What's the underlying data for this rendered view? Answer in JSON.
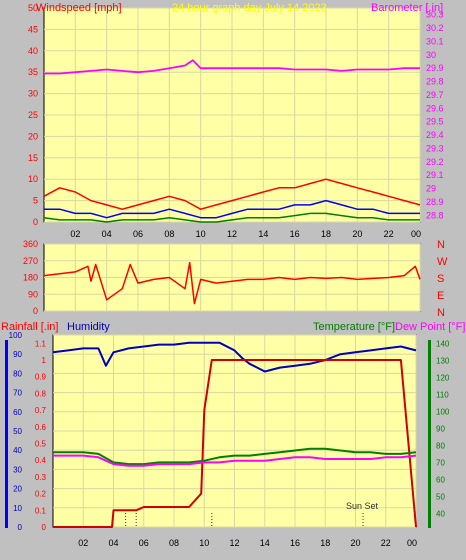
{
  "colors": {
    "background": "#c0c0c0",
    "plot_bg": "#ffffa6",
    "grid": "#d8d8a0",
    "red": "#ff0000",
    "magenta": "#ff00ff",
    "blue": "#0000ff",
    "navy": "#0000c0",
    "green": "#008000",
    "darkred": "#d00000"
  },
  "header": {
    "windspeed_label": "Windspeed [mph]",
    "title": "24 hour graph day   July 14 2023",
    "barometer_label": "Barometer [.in]"
  },
  "x_ticks": [
    "02",
    "04",
    "06",
    "08",
    "10",
    "12",
    "14",
    "16",
    "18",
    "20",
    "22",
    "00"
  ],
  "chart_data": [
    {
      "type": "line",
      "id": "wind_baro",
      "title": "24 hour graph day   July 14 2023",
      "y_left_label": "Windspeed [mph]",
      "y_left_ticks": [
        "0",
        "5",
        "10",
        "15",
        "20",
        "25",
        "30",
        "35",
        "40",
        "45",
        "50"
      ],
      "y_left_range": [
        0,
        50
      ],
      "y_right_label": "Barometer [.in]",
      "y_right_ticks": [
        "28.8",
        "28.9",
        "29",
        "29.1",
        "29.2",
        "29.3",
        "29.4",
        "29.5",
        "29.6",
        "29.7",
        "29.8",
        "29.9",
        "30",
        "30.1",
        "30.2",
        "30.3"
      ],
      "y_right_range": [
        28.75,
        30.35
      ],
      "x_range_hours": [
        0,
        24
      ],
      "series": [
        {
          "name": "Barometer [.in]",
          "color": "#ff00ff",
          "axis": "right",
          "x": [
            0,
            1,
            2,
            3,
            4,
            5,
            6,
            7,
            8,
            9,
            9.5,
            10,
            11,
            12,
            13,
            14,
            15,
            16,
            17,
            18,
            19,
            20,
            21,
            22,
            23,
            24
          ],
          "y": [
            29.86,
            29.86,
            29.87,
            29.88,
            29.89,
            29.88,
            29.87,
            29.88,
            29.9,
            29.92,
            29.96,
            29.9,
            29.9,
            29.9,
            29.9,
            29.9,
            29.9,
            29.89,
            29.89,
            29.89,
            29.88,
            29.89,
            29.89,
            29.89,
            29.9,
            29.9
          ]
        },
        {
          "name": "Wind gust",
          "color": "#ff0000",
          "axis": "left",
          "x": [
            0,
            1,
            2,
            3,
            4,
            5,
            6,
            7,
            8,
            9,
            10,
            11,
            12,
            13,
            14,
            15,
            16,
            17,
            18,
            19,
            20,
            21,
            22,
            23,
            24
          ],
          "y": [
            6,
            8,
            7,
            5,
            4,
            3,
            4,
            5,
            6,
            5,
            3,
            4,
            5,
            6,
            7,
            8,
            8,
            9,
            10,
            9,
            8,
            7,
            6,
            5,
            4
          ]
        },
        {
          "name": "Wind average",
          "color": "#0000ff",
          "axis": "left",
          "x": [
            0,
            1,
            2,
            3,
            4,
            5,
            6,
            7,
            8,
            9,
            10,
            11,
            12,
            13,
            14,
            15,
            16,
            17,
            18,
            19,
            20,
            21,
            22,
            23,
            24
          ],
          "y": [
            3,
            3,
            2,
            2,
            1,
            2,
            2,
            2,
            3,
            2,
            1,
            1,
            2,
            3,
            3,
            3,
            4,
            4,
            5,
            4,
            3,
            3,
            2,
            2,
            2
          ]
        },
        {
          "name": "Wind low",
          "color": "#008000",
          "axis": "left",
          "x": [
            0,
            1,
            2,
            3,
            4,
            5,
            6,
            7,
            8,
            9,
            10,
            11,
            12,
            13,
            14,
            15,
            16,
            17,
            18,
            19,
            20,
            21,
            22,
            23,
            24
          ],
          "y": [
            1,
            0.5,
            0.5,
            0.5,
            0,
            0.5,
            0.5,
            0.5,
            1,
            0.5,
            0,
            0,
            0.5,
            1,
            1,
            1,
            1.5,
            2,
            2,
            1.5,
            1,
            1,
            0.5,
            0.5,
            0.5
          ]
        }
      ]
    },
    {
      "type": "line",
      "id": "wind_direction",
      "y_ticks": [
        "0",
        "90",
        "180",
        "270",
        "360"
      ],
      "y_range": [
        0,
        360
      ],
      "compass_labels": [
        "N",
        "W",
        "S",
        "E",
        "N"
      ],
      "series": [
        {
          "name": "Wind direction",
          "color": "#ff0000",
          "x": [
            0,
            1,
            2,
            2.8,
            3,
            3.3,
            4,
            5,
            5.5,
            6,
            7,
            8,
            9,
            9.3,
            9.6,
            10,
            11,
            12,
            13,
            14,
            15,
            16,
            17,
            18,
            19,
            20,
            21,
            22,
            23,
            23.7,
            24
          ],
          "y": [
            190,
            200,
            210,
            240,
            160,
            250,
            60,
            120,
            250,
            150,
            170,
            180,
            120,
            260,
            40,
            170,
            150,
            160,
            170,
            170,
            180,
            170,
            180,
            175,
            180,
            170,
            175,
            180,
            190,
            240,
            170
          ]
        }
      ]
    },
    {
      "type": "line",
      "id": "rain_humidity_temp",
      "rain_label": "Rainfall [.in]",
      "humidity_label": "Humidity",
      "temperature_label": "Temperature [°F]",
      "dewpoint_label": "Dew Point [°F]",
      "y_humidity_ticks": [
        "0",
        "10",
        "20",
        "30",
        "40",
        "50",
        "60",
        "70",
        "80",
        "90",
        "100"
      ],
      "y_humidity_range": [
        0,
        100
      ],
      "y_rain_ticks": [
        "0",
        "0.1",
        "0.2",
        "0.3",
        "0.4",
        "0.5",
        "0.6",
        "0.7",
        "0.8",
        "0.9",
        "1",
        "1.1"
      ],
      "y_rain_range": [
        0,
        1.15
      ],
      "y_temp_ticks": [
        "40",
        "50",
        "60",
        "70",
        "80",
        "90",
        "100",
        "110",
        "120",
        "130",
        "140"
      ],
      "y_temp_range": [
        32,
        145
      ],
      "annotation": "Sun Set",
      "series": [
        {
          "name": "Humidity",
          "color": "#0000c0",
          "axis": "humidity",
          "x": [
            0,
            1,
            2,
            3,
            3.5,
            4,
            5,
            6,
            7,
            8,
            9,
            10,
            11,
            12,
            12.5,
            13,
            13.5,
            14,
            15,
            16,
            17,
            18,
            19,
            20,
            21,
            22,
            23,
            24
          ],
          "y": [
            91,
            92,
            93,
            93,
            84,
            91,
            93,
            94,
            95,
            95,
            96,
            96,
            96,
            92,
            88,
            85,
            83,
            81,
            83,
            84,
            85,
            87,
            90,
            91,
            92,
            93,
            94,
            92
          ]
        },
        {
          "name": "Rainfall [.in]",
          "color": "#d00000",
          "axis": "rain",
          "x": [
            0,
            3.9,
            4,
            5,
            5.5,
            6,
            7,
            8,
            9,
            9.8,
            10,
            10.5,
            11,
            12,
            13,
            14,
            15,
            16,
            17,
            18,
            19,
            20,
            21,
            22,
            23,
            24
          ],
          "y": [
            0,
            0,
            0.1,
            0.1,
            0.1,
            0.12,
            0.12,
            0.12,
            0.12,
            0.2,
            0.7,
            1.0,
            1.0,
            1.0,
            1.0,
            1.0,
            1.0,
            1.0,
            1.0,
            1.0,
            1.0,
            1.0,
            1.0,
            1.0,
            1.0,
            0.0
          ]
        },
        {
          "name": "Temperature [°F]",
          "color": "#008000",
          "axis": "temp",
          "x": [
            0,
            1,
            2,
            3,
            4,
            5,
            6,
            7,
            8,
            9,
            10,
            11,
            12,
            13,
            14,
            15,
            16,
            17,
            18,
            19,
            20,
            21,
            22,
            23,
            24
          ],
          "y": [
            76,
            76,
            76,
            75,
            70,
            69,
            69,
            70,
            70,
            70,
            71,
            73,
            74,
            74,
            75,
            76,
            77,
            78,
            78,
            77,
            76,
            76,
            75,
            75,
            76
          ]
        },
        {
          "name": "Dew Point [°F]",
          "color": "#ff00ff",
          "axis": "temp",
          "x": [
            0,
            1,
            2,
            3,
            4,
            5,
            6,
            7,
            8,
            9,
            10,
            11,
            12,
            13,
            14,
            15,
            16,
            17,
            18,
            19,
            20,
            21,
            22,
            23,
            24
          ],
          "y": [
            74,
            74,
            74,
            73,
            69,
            68,
            68,
            69,
            69,
            69,
            70,
            70,
            71,
            71,
            71,
            72,
            73,
            73,
            72,
            72,
            72,
            72,
            73,
            73,
            74
          ]
        }
      ]
    }
  ]
}
